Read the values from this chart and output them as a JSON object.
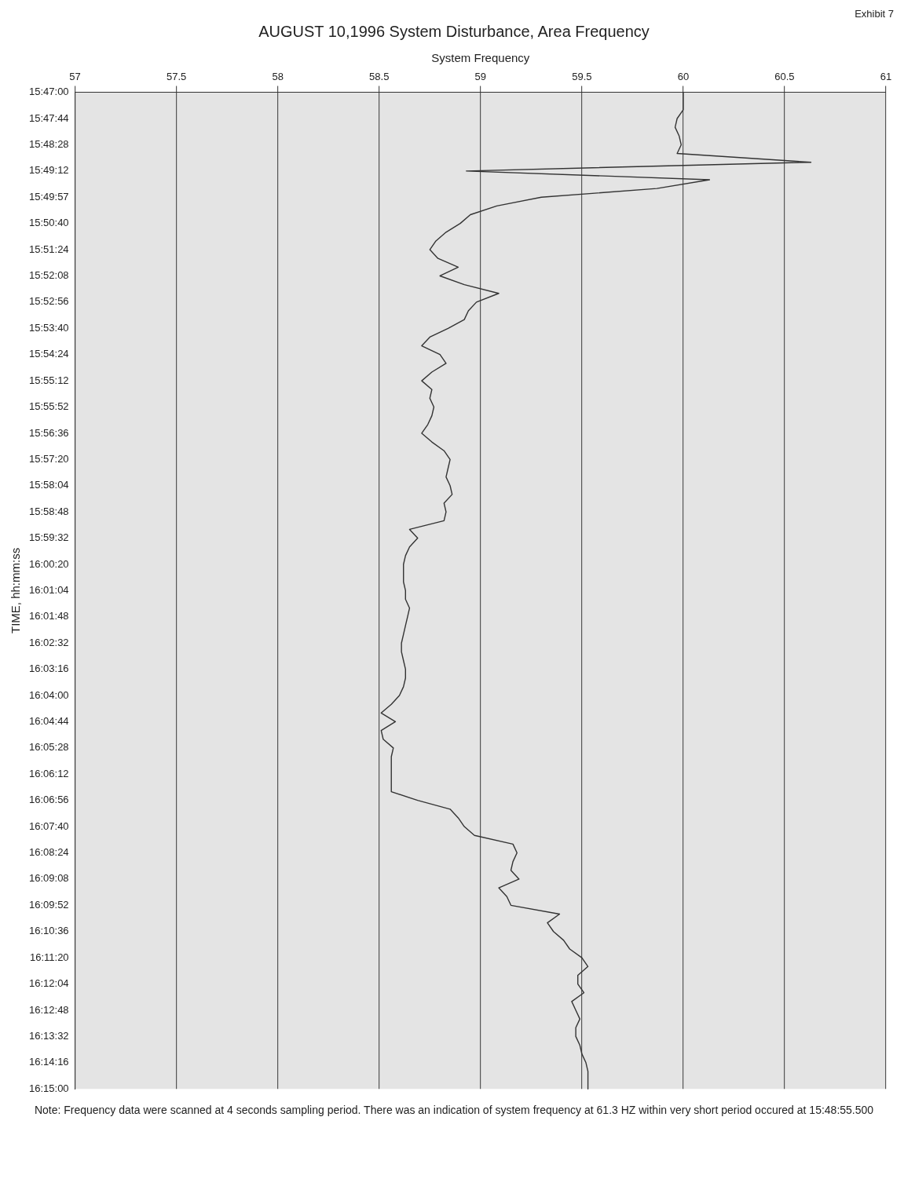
{
  "chart_data": {
    "type": "line",
    "orientation": "horizontal",
    "title": "AUGUST 10,1996 System Disturbance, Area Frequency",
    "xlabel": "System Frequency",
    "ylabel": "TIME, hh:mm:ss",
    "annotations": [
      "Exhibit 7",
      "Note: Frequency data were scanned at 4 seconds sampling period. There was an indication of system frequency at 61.3 HZ within very short period occured at 15:48:55.500"
    ],
    "categories": [
      "15:47:00",
      null,
      null,
      "15:47:44",
      null,
      null,
      "15:48:28",
      null,
      null,
      "15:49:12",
      null,
      null,
      "15:49:57",
      null,
      null,
      "15:50:40",
      null,
      null,
      "15:51:24",
      null,
      null,
      "15:52:08",
      null,
      null,
      "15:52:56",
      null,
      null,
      "15:53:40",
      null,
      null,
      "15:54:24",
      null,
      null,
      "15:55:12",
      null,
      null,
      "15:55:52",
      null,
      null,
      "15:56:36",
      null,
      null,
      "15:57:20",
      null,
      null,
      "15:58:04",
      null,
      null,
      "15:58:48",
      null,
      null,
      "15:59:32",
      null,
      null,
      "16:00:20",
      null,
      null,
      "16:01:04",
      null,
      null,
      "16:01:48",
      null,
      null,
      "16:02:32",
      null,
      null,
      "16:03:16",
      null,
      null,
      "16:04:00",
      null,
      null,
      "16:04:44",
      null,
      null,
      "16:05:28",
      null,
      null,
      "16:06:12",
      null,
      null,
      "16:06:56",
      null,
      null,
      "16:07:40",
      null,
      null,
      "16:08:24",
      null,
      null,
      "16:09:08",
      null,
      null,
      "16:09:52",
      null,
      null,
      "16:10:36",
      null,
      null,
      "16:11:20",
      null,
      null,
      "16:12:04",
      null,
      null,
      "16:12:48",
      null,
      null,
      "16:13:32",
      null,
      null,
      "16:14:16",
      null,
      null,
      "16:15:00"
    ],
    "series": [
      {
        "color": "#333333",
        "values": [
          60.0,
          60.0,
          60.0,
          59.97,
          59.96,
          59.98,
          59.99,
          59.97,
          60.63,
          58.93,
          60.13,
          59.87,
          59.3,
          59.08,
          58.95,
          58.9,
          58.83,
          58.78,
          58.75,
          58.79,
          58.89,
          58.8,
          58.92,
          59.09,
          58.98,
          58.94,
          58.92,
          58.84,
          58.75,
          58.71,
          58.8,
          58.83,
          58.76,
          58.71,
          58.76,
          58.75,
          58.77,
          58.76,
          58.74,
          58.71,
          58.76,
          58.82,
          58.85,
          58.84,
          58.83,
          58.85,
          58.86,
          58.82,
          58.83,
          58.82,
          58.65,
          58.69,
          58.65,
          58.63,
          58.62,
          58.62,
          58.62,
          58.63,
          58.63,
          58.65,
          58.64,
          58.63,
          58.62,
          58.61,
          58.61,
          58.62,
          58.63,
          58.63,
          58.62,
          58.6,
          58.56,
          58.51,
          58.58,
          58.51,
          58.52,
          58.57,
          58.56,
          58.56,
          58.56,
          58.56,
          58.56,
          58.69,
          58.85,
          58.89,
          58.92,
          58.97,
          59.16,
          59.18,
          59.16,
          59.15,
          59.19,
          59.09,
          59.13,
          59.15,
          59.39,
          59.33,
          59.36,
          59.41,
          59.44,
          59.5,
          59.53,
          59.48,
          59.48,
          59.51,
          59.45,
          59.47,
          59.49,
          59.47,
          59.47,
          59.49,
          59.5,
          59.52,
          59.53,
          59.53,
          59.53
        ]
      }
    ],
    "xlim": [
      57,
      61
    ],
    "xticks": [
      57,
      57.5,
      58,
      58.5,
      59,
      59.5,
      60,
      60.5,
      61
    ],
    "grid": "x",
    "marker": "none",
    "line_style": "solid"
  }
}
